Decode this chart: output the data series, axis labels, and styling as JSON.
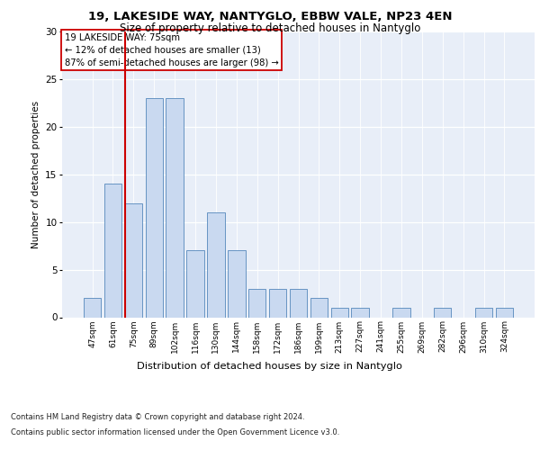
{
  "title1": "19, LAKESIDE WAY, NANTYGLO, EBBW VALE, NP23 4EN",
  "title2": "Size of property relative to detached houses in Nantyglo",
  "xlabel": "Distribution of detached houses by size in Nantyglo",
  "ylabel": "Number of detached properties",
  "categories": [
    "47sqm",
    "61sqm",
    "75sqm",
    "89sqm",
    "102sqm",
    "116sqm",
    "130sqm",
    "144sqm",
    "158sqm",
    "172sqm",
    "186sqm",
    "199sqm",
    "213sqm",
    "227sqm",
    "241sqm",
    "255sqm",
    "269sqm",
    "282sqm",
    "296sqm",
    "310sqm",
    "324sqm"
  ],
  "values": [
    2,
    14,
    12,
    23,
    23,
    7,
    11,
    7,
    3,
    3,
    3,
    2,
    1,
    1,
    0,
    1,
    0,
    1,
    0,
    1,
    1
  ],
  "bar_color": "#c9d9f0",
  "bar_edge_color": "#5588bb",
  "vline_color": "#cc0000",
  "annotation_title": "19 LAKESIDE WAY: 75sqm",
  "annotation_line1": "← 12% of detached houses are smaller (13)",
  "annotation_line2": "87% of semi-detached houses are larger (98) →",
  "annotation_box_color": "#ffffff",
  "annotation_box_edge": "#cc0000",
  "ylim": [
    0,
    30
  ],
  "yticks": [
    0,
    5,
    10,
    15,
    20,
    25,
    30
  ],
  "footer1": "Contains HM Land Registry data © Crown copyright and database right 2024.",
  "footer2": "Contains public sector information licensed under the Open Government Licence v3.0.",
  "plot_bg_color": "#e8eef8"
}
